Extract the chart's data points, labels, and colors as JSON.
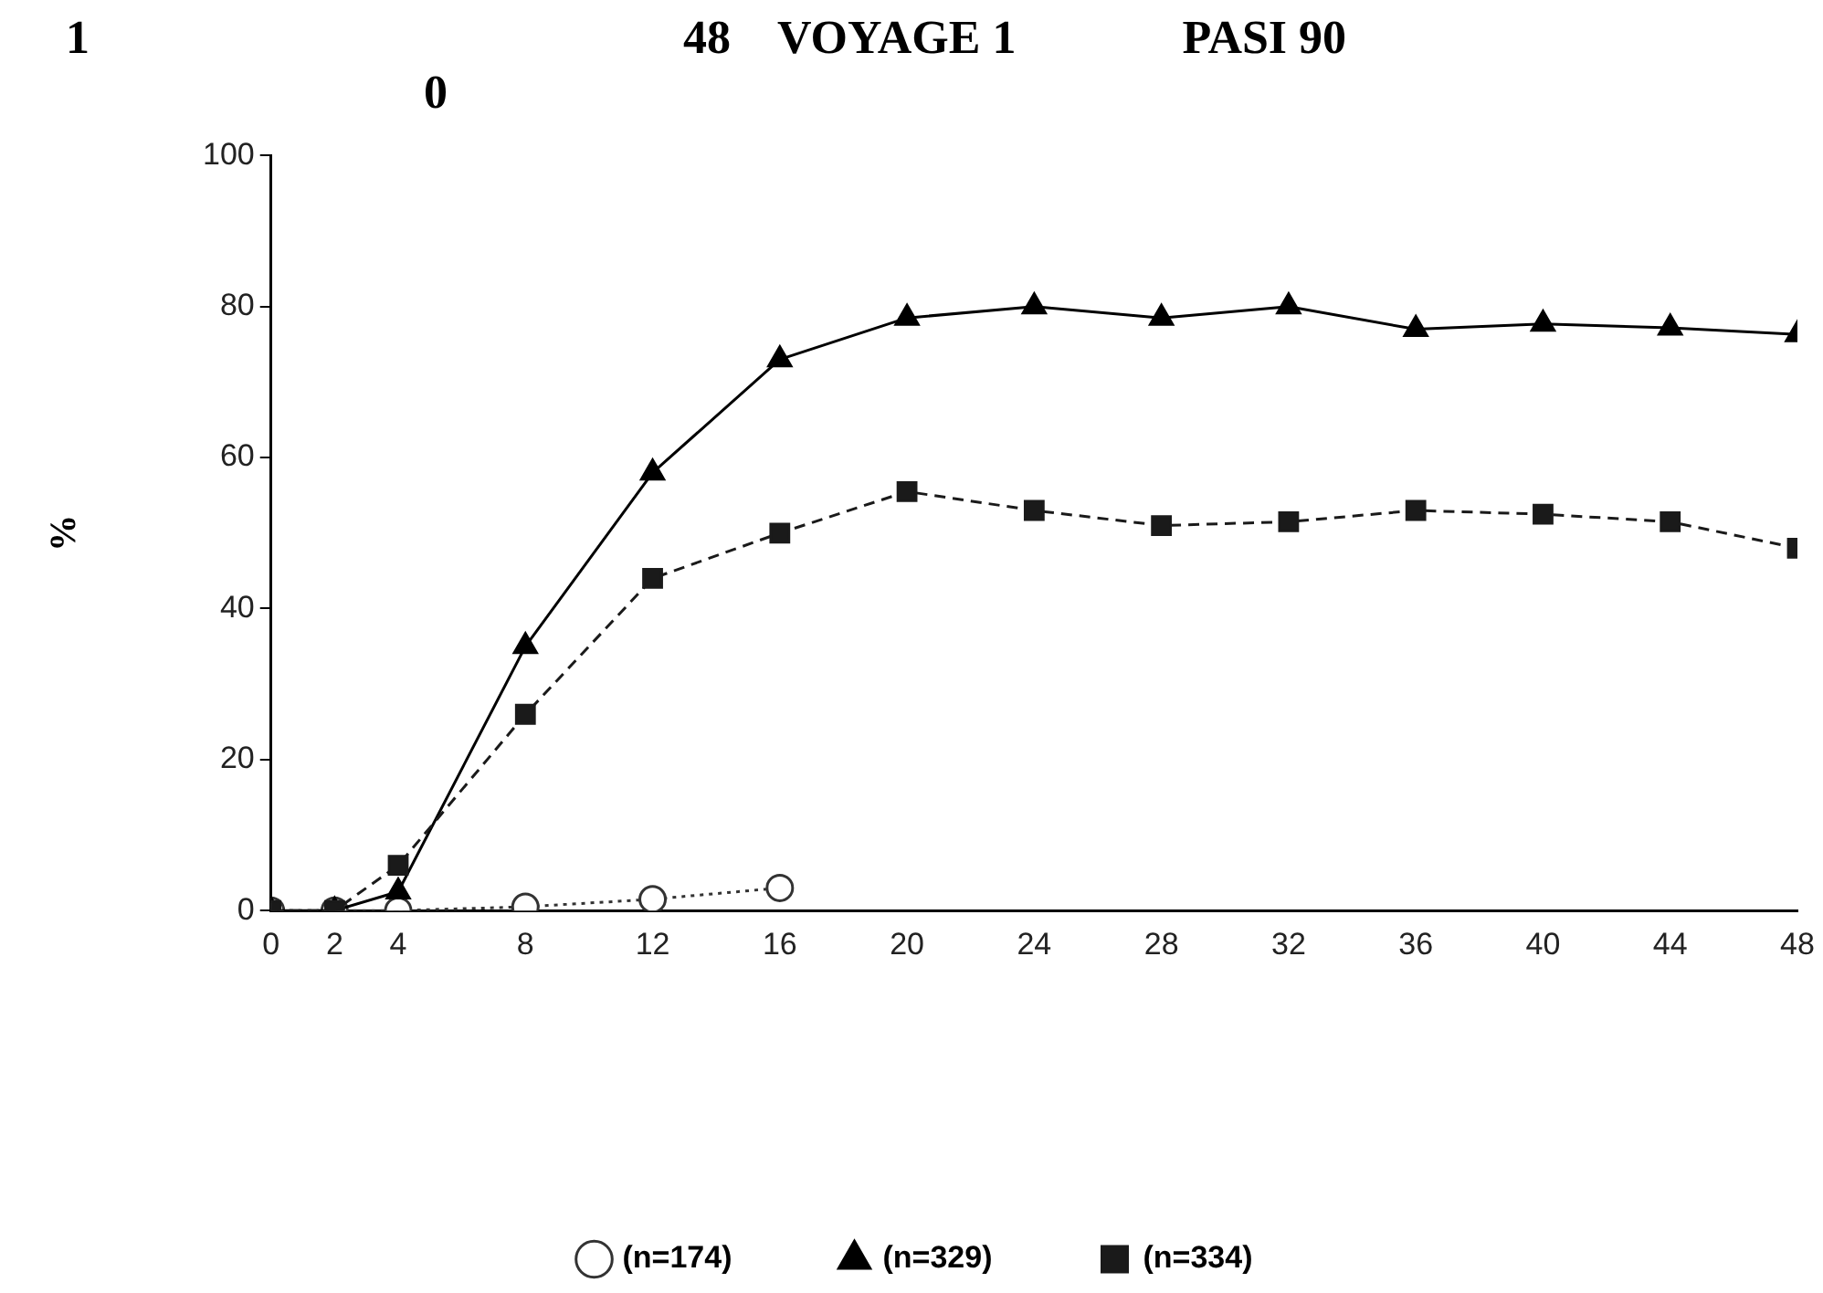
{
  "chart_data": {
    "type": "line",
    "title": "1                                                  48    VOYAGE 1              PASI 90",
    "subtitle": "0",
    "ylabel": "%",
    "x": [
      0,
      2,
      4,
      8,
      12,
      16,
      20,
      24,
      28,
      32,
      36,
      40,
      44,
      48
    ],
    "series": [
      {
        "name": "(n=174)",
        "color": "#333333",
        "marker": "circle",
        "line_style": "dotted",
        "x": [
          0,
          2,
          4,
          8,
          12,
          16
        ],
        "values": [
          0,
          0,
          0,
          0.5,
          1.5,
          3
        ]
      },
      {
        "name": "(n=329)",
        "color": "#000000",
        "marker": "triangle",
        "line_style": "solid",
        "values": [
          0,
          0,
          2.5,
          35,
          58,
          73,
          78.5,
          80,
          78.5,
          80,
          77,
          77.7,
          77.2,
          76.3
        ]
      },
      {
        "name": "(n=334)",
        "color": "#1a1a1a",
        "marker": "square",
        "line_style": "dashed",
        "values": [
          0,
          0,
          6,
          26,
          44,
          50,
          55.5,
          53,
          51,
          51.5,
          53,
          52.5,
          51.5,
          48
        ]
      }
    ],
    "xlim": [
      0,
      48
    ],
    "xticks": [
      0,
      2,
      4,
      8,
      12,
      16,
      20,
      24,
      28,
      32,
      36,
      40,
      44,
      48
    ],
    "ylim": [
      0,
      100
    ],
    "yticks": [
      0,
      20,
      40,
      60,
      80,
      100
    ],
    "grid": false,
    "legend": "bottom"
  }
}
